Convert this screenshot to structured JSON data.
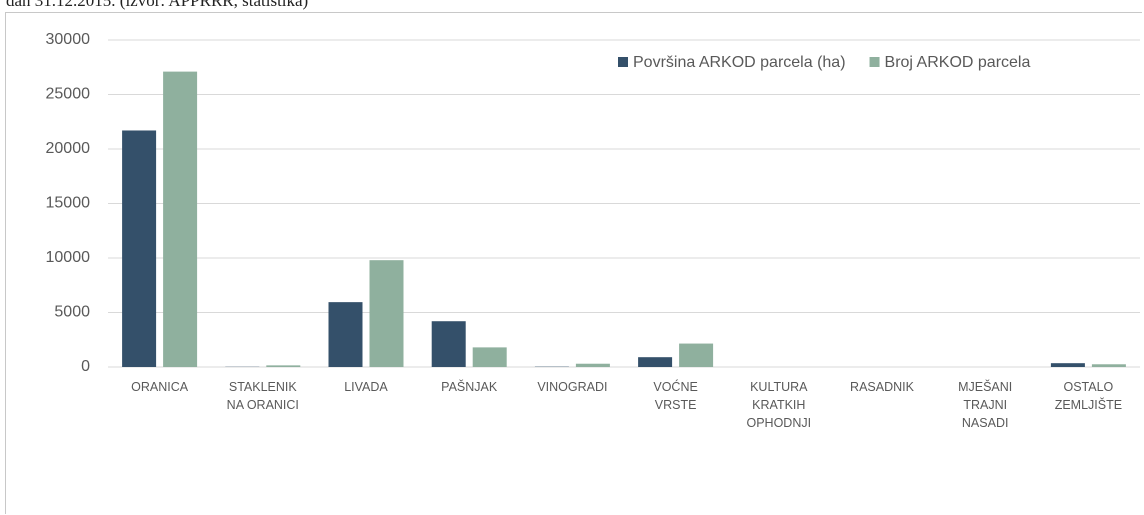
{
  "caption": "dan 31.12.2015. (izvor: APPRRR, statistika)",
  "chart_data": {
    "type": "bar",
    "categories": [
      "ORANICA",
      "STAKLENIK NA ORANICI",
      "LIVADA",
      "PAŠNJAK",
      "VINOGRADI",
      "VOĆNE VRSTE",
      "KULTURA KRATKIH OPHODNJI",
      "RASADNIK",
      "MJEŠANI TRAJNI NASADI",
      "OSTALO ZEMLJIŠTE"
    ],
    "series": [
      {
        "name": "Površina ARKOD parcela (ha)",
        "color": "#34506a",
        "values": [
          21700,
          20,
          5950,
          4200,
          30,
          900,
          0,
          0,
          0,
          350
        ]
      },
      {
        "name": "Broj ARKOD parcela",
        "color": "#8fb09e",
        "values": [
          27100,
          150,
          9800,
          1800,
          300,
          2150,
          0,
          0,
          0,
          250
        ]
      }
    ],
    "ylim": [
      0,
      30000
    ],
    "yticks": [
      0,
      5000,
      10000,
      15000,
      20000,
      25000,
      30000
    ],
    "grid": true,
    "legend": "top-right"
  }
}
